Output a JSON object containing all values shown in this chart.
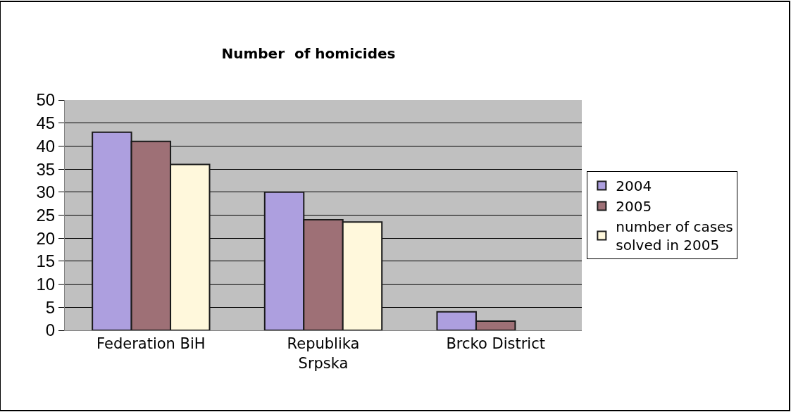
{
  "chart_data": {
    "type": "bar",
    "title": "Number  of homicides",
    "categories": [
      "Federation BiH",
      "Republika\nSrpska",
      "Brcko District"
    ],
    "series": [
      {
        "name": "2004",
        "color": "#ad9fdf",
        "values": [
          43,
          30,
          4
        ]
      },
      {
        "name": "2005",
        "color": "#9e7076",
        "values": [
          41,
          24,
          2
        ]
      },
      {
        "name": "number of cases\nsolved in 2005",
        "color": "#fff8dc",
        "values": [
          36,
          23.5,
          null
        ]
      }
    ],
    "ylim": [
      0,
      50
    ],
    "yticks": [
      0,
      5,
      10,
      15,
      20,
      25,
      30,
      35,
      40,
      45,
      50
    ],
    "grid": "y",
    "legend": "right"
  }
}
